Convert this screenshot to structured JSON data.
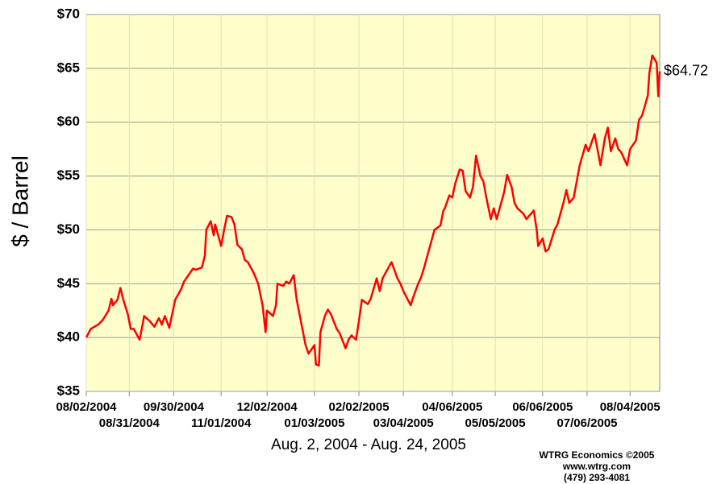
{
  "chart_data": {
    "type": "line",
    "y_label": "$ / Barrel",
    "x_label": "Aug. 2, 2004 - Aug. 24, 2005",
    "credits": [
      "WTRG Economics  ©2005",
      "www.wtrg.com",
      "(479) 293-4081"
    ],
    "color": "#ff0000",
    "background": "#ffffcc",
    "grid": true,
    "xlim": [
      "08/02/2004",
      "08/24/2005"
    ],
    "xticks": [
      "08/02/2004",
      "08/31/2004",
      "09/30/2004",
      "11/01/2004",
      "12/02/2004",
      "01/03/2005",
      "02/02/2005",
      "03/04/2005",
      "04/06/2005",
      "05/05/2005",
      "06/06/2005",
      "07/06/2005",
      "08/04/2005"
    ],
    "ylim": [
      35,
      70
    ],
    "yticks": [
      {
        "value": 35,
        "label": "$35"
      },
      {
        "value": 40,
        "label": "$40"
      },
      {
        "value": 45,
        "label": "$45"
      },
      {
        "value": 50,
        "label": "$50"
      },
      {
        "value": 55,
        "label": "$55"
      },
      {
        "value": 60,
        "label": "$60"
      },
      {
        "value": 65,
        "label": "$65"
      },
      {
        "value": 70,
        "label": "$70"
      }
    ],
    "annotations": [
      {
        "x": "08/24/2005",
        "y": 64.72,
        "text": "$64.72"
      }
    ],
    "x": [
      "08/02/2004",
      "08/05/2004",
      "08/10/2004",
      "08/13/2004",
      "08/17/2004",
      "08/19/2004",
      "08/20/2004",
      "08/23/2004",
      "08/25/2004",
      "08/27/2004",
      "08/30/2004",
      "09/01/2004",
      "09/03/2004",
      "09/07/2004",
      "09/09/2004",
      "09/10/2004",
      "09/14/2004",
      "09/17/2004",
      "09/20/2004",
      "09/22/2004",
      "09/24/2004",
      "09/27/2004",
      "09/29/2004",
      "10/01/2004",
      "10/05/2004",
      "10/07/2004",
      "10/11/2004",
      "10/13/2004",
      "10/15/2004",
      "10/19/2004",
      "10/21/2004",
      "10/22/2004",
      "10/25/2004",
      "10/27/2004",
      "10/28/2004",
      "11/01/2004",
      "11/03/2004",
      "11/05/2004",
      "11/08/2004",
      "11/10/2004",
      "11/12/2004",
      "11/15/2004",
      "11/17/2004",
      "11/19/2004",
      "11/23/2004",
      "11/26/2004",
      "11/29/2004",
      "12/01/2004",
      "12/02/2004",
      "12/06/2004",
      "12/08/2004",
      "12/09/2004",
      "12/13/2004",
      "12/15/2004",
      "12/17/2004",
      "12/20/2004",
      "12/22/2004",
      "12/28/2004",
      "12/30/2004",
      "01/03/2005",
      "01/04/2005",
      "01/06/2005",
      "01/07/2005",
      "01/10/2005",
      "01/12/2005",
      "01/14/2005",
      "01/18/2005",
      "01/20/2005",
      "01/24/2005",
      "01/26/2005",
      "01/28/2005",
      "01/31/2005",
      "02/02/2005",
      "02/04/2005",
      "02/08/2005",
      "02/10/2005",
      "02/14/2005",
      "02/16/2005",
      "02/18/2005",
      "02/22/2005",
      "02/24/2005",
      "02/28/2005",
      "03/02/2005",
      "03/04/2005",
      "03/07/2005",
      "03/09/2005",
      "03/10/2005",
      "03/14/2005",
      "03/16/2005",
      "03/18/2005",
      "03/21/2005",
      "03/23/2005",
      "03/25/2005",
      "03/29/2005",
      "03/31/2005",
      "04/01/2005",
      "04/04/2005",
      "04/06/2005",
      "04/08/2005",
      "04/11/2005",
      "04/13/2005",
      "04/15/2005",
      "04/18/2005",
      "04/20/2005",
      "04/22/2005",
      "04/25/2005",
      "04/27/2005",
      "04/29/2005",
      "05/02/2005",
      "05/04/2005",
      "05/06/2005",
      "05/09/2005",
      "05/11/2005",
      "05/13/2005",
      "05/16/2005",
      "05/18/2005",
      "05/20/2005",
      "05/24/2005",
      "05/26/2005",
      "05/31/2005",
      "06/02/2005",
      "06/03/2005",
      "06/06/2005",
      "06/08/2005",
      "06/10/2005",
      "06/14/2005",
      "06/16/2005",
      "06/20/2005",
      "06/22/2005",
      "06/24/2005",
      "06/27/2005",
      "06/29/2005",
      "07/01/2005",
      "07/05/2005",
      "07/07/2005",
      "07/11/2005",
      "07/13/2005",
      "07/15/2005",
      "07/18/2005",
      "07/20/2005",
      "07/22/2005",
      "07/25/2005",
      "07/27/2005",
      "07/29/2005",
      "08/02/2005",
      "08/04/2005",
      "08/08/2005",
      "08/10/2005",
      "08/12/2005",
      "08/14/2005",
      "08/16/2005",
      "08/17/2005",
      "08/19/2005",
      "08/22/2005",
      "08/23/2005",
      "08/24/2005"
    ],
    "values": [
      40.0,
      40.8,
      41.2,
      41.6,
      42.5,
      43.6,
      43.0,
      43.5,
      44.6,
      43.5,
      42.2,
      40.8,
      40.8,
      39.8,
      41.2,
      42.0,
      41.5,
      41.0,
      41.8,
      41.2,
      42.0,
      40.9,
      42.2,
      43.5,
      44.5,
      45.2,
      46.0,
      46.4,
      46.3,
      46.5,
      47.6,
      50.0,
      50.8,
      49.5,
      50.5,
      48.5,
      50.0,
      51.3,
      51.2,
      50.5,
      48.6,
      48.2,
      47.2,
      47.0,
      46.0,
      45.0,
      43.0,
      40.5,
      42.5,
      42.0,
      43.0,
      45.0,
      44.8,
      45.2,
      45.0,
      45.8,
      43.5,
      39.3,
      38.5,
      39.3,
      37.5,
      37.4,
      40.5,
      42.0,
      42.6,
      42.2,
      40.8,
      40.4,
      39.0,
      39.8,
      40.2,
      39.8,
      41.5,
      43.5,
      43.1,
      43.6,
      45.5,
      44.3,
      45.5,
      46.5,
      47.0,
      45.5,
      45.0,
      44.3,
      43.5,
      43.0,
      43.5,
      45.0,
      45.6,
      46.5,
      48.0,
      49.0,
      50.0,
      50.4,
      51.8,
      52.0,
      53.2,
      53.0,
      54.3,
      55.6,
      55.5,
      53.6,
      53.0,
      54.0,
      56.9,
      55.0,
      54.5,
      53.0,
      51.0,
      52.0,
      51.0,
      52.5,
      53.5,
      55.1,
      54.0,
      52.5,
      52.0,
      51.5,
      51.0,
      51.8,
      50.0,
      48.5,
      49.2,
      48.0,
      48.2,
      50.0,
      50.5,
      52.5,
      53.7,
      52.5,
      53.0,
      54.5,
      56.0,
      57.9,
      57.3,
      58.9,
      57.5,
      56.0,
      58.5,
      59.5,
      57.3,
      58.5,
      57.5,
      57.2,
      56.0,
      57.5,
      58.3,
      60.2,
      60.6,
      61.5,
      62.5,
      64.5,
      66.2,
      65.5,
      62.4,
      64.72
    ]
  }
}
